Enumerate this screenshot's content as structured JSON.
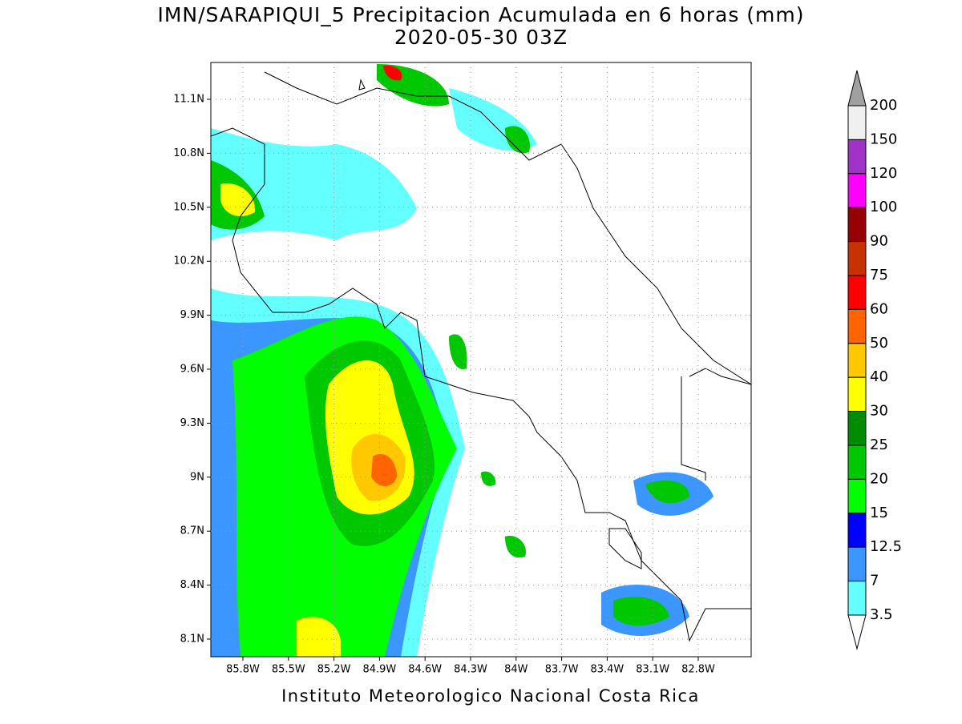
{
  "header": {
    "title": "IMN/SARAPIQUI_5 Precipitacion Acumulada en 6 horas (mm)",
    "subtitle": "2020-05-30 03Z"
  },
  "map": {
    "lat_labels": [
      "11.1N",
      "10.8N",
      "10.5N",
      "10.2N",
      "9.9N",
      "9.6N",
      "9.3N",
      "9N",
      "8.7N",
      "8.4N",
      "8.1N"
    ],
    "lon_labels": [
      "85.8W",
      "85.5W",
      "85.2W",
      "84.9W",
      "84.6W",
      "84.3W",
      "84W",
      "83.7W",
      "83.4W",
      "83.1W",
      "82.8W"
    ]
  },
  "colorbar": {
    "labels": [
      "200",
      "150",
      "120",
      "100",
      "90",
      "75",
      "60",
      "50",
      "40",
      "30",
      "25",
      "20",
      "15",
      "12.5",
      "7",
      "3.5"
    ],
    "colors": [
      "#a0a0a0",
      "#f0f0f0",
      "#a032c8",
      "#ff00ff",
      "#960000",
      "#c83200",
      "#ff0000",
      "#ff6400",
      "#ffc800",
      "#ffff00",
      "#008c00",
      "#00c800",
      "#00ff00",
      "#0000ff",
      "#3c96ff",
      "#64ffff",
      "#ffffff"
    ]
  },
  "footer": {
    "text": "Instituto Meteorologico Nacional Costa Rica"
  }
}
